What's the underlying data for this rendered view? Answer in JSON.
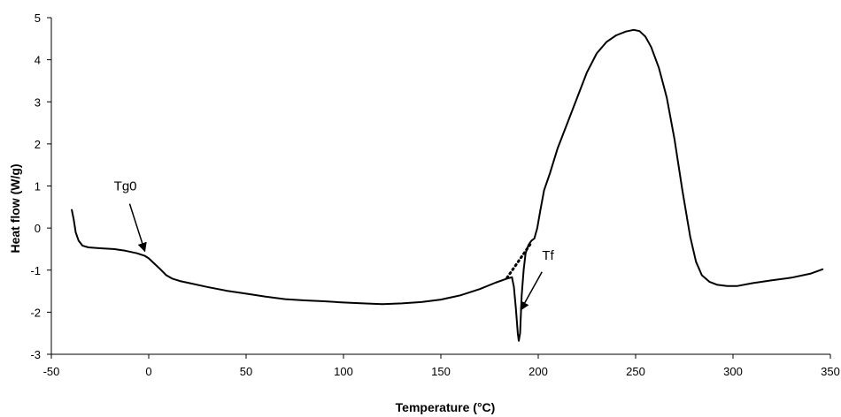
{
  "chart_data": {
    "type": "line",
    "title": "",
    "xlabel": "Temperature (°C)",
    "ylabel": "Heat flow (W/g)",
    "xlim": [
      -50,
      350
    ],
    "ylim": [
      -3,
      5
    ],
    "xticks": [
      -50,
      0,
      50,
      100,
      150,
      200,
      250,
      300,
      350
    ],
    "yticks": [
      -3,
      -2,
      -1,
      0,
      1,
      2,
      3,
      4,
      5
    ],
    "grid": false,
    "legend": "none",
    "series": [
      {
        "color": "#000000",
        "style": "solid",
        "points": [
          [
            -39.5,
            0.43
          ],
          [
            -38.5,
            0.2
          ],
          [
            -37.5,
            -0.1
          ],
          [
            -36,
            -0.3
          ],
          [
            -34,
            -0.42
          ],
          [
            -31,
            -0.46
          ],
          [
            -25,
            -0.48
          ],
          [
            -18,
            -0.5
          ],
          [
            -12,
            -0.54
          ],
          [
            -6,
            -0.6
          ],
          [
            -2,
            -0.66
          ],
          [
            0,
            -0.72
          ],
          [
            3,
            -0.85
          ],
          [
            6,
            -0.98
          ],
          [
            9,
            -1.12
          ],
          [
            12,
            -1.2
          ],
          [
            16,
            -1.26
          ],
          [
            20,
            -1.3
          ],
          [
            30,
            -1.4
          ],
          [
            40,
            -1.49
          ],
          [
            50,
            -1.56
          ],
          [
            60,
            -1.63
          ],
          [
            70,
            -1.69
          ],
          [
            80,
            -1.72
          ],
          [
            90,
            -1.74
          ],
          [
            100,
            -1.77
          ],
          [
            110,
            -1.79
          ],
          [
            120,
            -1.81
          ],
          [
            130,
            -1.79
          ],
          [
            140,
            -1.76
          ],
          [
            150,
            -1.7
          ],
          [
            160,
            -1.6
          ],
          [
            170,
            -1.45
          ],
          [
            178,
            -1.3
          ],
          [
            184,
            -1.2
          ],
          [
            186.5,
            -1.17
          ],
          [
            187.5,
            -1.4
          ],
          [
            188.5,
            -1.9
          ],
          [
            189.5,
            -2.5
          ],
          [
            190,
            -2.68
          ],
          [
            190.7,
            -2.5
          ],
          [
            191.5,
            -1.6
          ],
          [
            192.5,
            -1.0
          ],
          [
            193.5,
            -0.6
          ],
          [
            195,
            -0.4
          ],
          [
            196.5,
            -0.3
          ],
          [
            198,
            -0.25
          ],
          [
            199.5,
            0.0
          ],
          [
            201,
            0.4
          ],
          [
            203,
            0.9
          ],
          [
            206,
            1.3
          ],
          [
            210,
            1.9
          ],
          [
            215,
            2.5
          ],
          [
            220,
            3.1
          ],
          [
            225,
            3.7
          ],
          [
            230,
            4.15
          ],
          [
            235,
            4.42
          ],
          [
            240,
            4.58
          ],
          [
            245,
            4.67
          ],
          [
            249,
            4.71
          ],
          [
            252,
            4.68
          ],
          [
            255,
            4.55
          ],
          [
            258,
            4.3
          ],
          [
            262,
            3.8
          ],
          [
            266,
            3.1
          ],
          [
            270,
            2.1
          ],
          [
            274,
            0.9
          ],
          [
            278,
            -0.2
          ],
          [
            281,
            -0.8
          ],
          [
            284,
            -1.12
          ],
          [
            288,
            -1.28
          ],
          [
            292,
            -1.35
          ],
          [
            297,
            -1.38
          ],
          [
            302,
            -1.38
          ],
          [
            310,
            -1.31
          ],
          [
            320,
            -1.24
          ],
          [
            330,
            -1.18
          ],
          [
            340,
            -1.08
          ],
          [
            346,
            -0.98
          ]
        ]
      },
      {
        "color": "#000000",
        "style": "dotted",
        "points": [
          [
            184,
            -1.18
          ],
          [
            196,
            -0.38
          ]
        ]
      }
    ],
    "annotations": [
      {
        "text": "Tg0",
        "arrow_tip": [
          -2,
          -0.55
        ],
        "text_pos": [
          -12,
          0.9
        ]
      },
      {
        "text": "Tf",
        "arrow_tip": [
          191,
          -1.95
        ],
        "text_pos": [
          205,
          -0.75
        ]
      }
    ]
  }
}
